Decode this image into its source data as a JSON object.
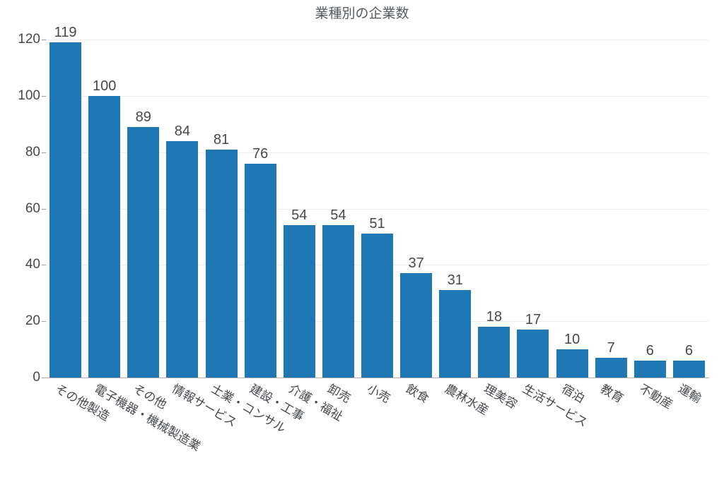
{
  "title": "業種別の企業数",
  "chart_data": {
    "type": "bar",
    "title": "業種別の企業数",
    "categories": [
      "その他製造",
      "電子機器・機械製造業",
      "その他",
      "情報サービス",
      "士業・コンサル",
      "建設・工事",
      "介護・福祉",
      "卸売",
      "小売",
      "飲食",
      "農林水産",
      "理美容",
      "生活サービス",
      "宿泊",
      "教育",
      "不動産",
      "運輸"
    ],
    "values": [
      119,
      100,
      89,
      84,
      81,
      76,
      54,
      54,
      51,
      37,
      31,
      18,
      17,
      10,
      7,
      6,
      6
    ],
    "value_labels": [
      "119",
      "100",
      "89",
      "84",
      "81",
      "76",
      "54",
      "54",
      "51",
      "37",
      "31",
      "18",
      "17",
      "10",
      "7",
      "6",
      "6"
    ],
    "xlabel": "",
    "ylabel": "",
    "ylim": [
      0,
      120
    ],
    "yticks": [
      0,
      20,
      40,
      60,
      80,
      100,
      120
    ],
    "grid": "horizontal",
    "legend": "none",
    "tick_angle_deg": 30,
    "bar_color": "#1f77b4"
  },
  "colors": {
    "bar": "#1f77b4",
    "grid": "#eceef1",
    "axis_line": "#a9adb2",
    "tick_mark": "#9a9ea3",
    "label_text": "#45484c",
    "title_text": "#555a60",
    "background": "#ffffff"
  }
}
